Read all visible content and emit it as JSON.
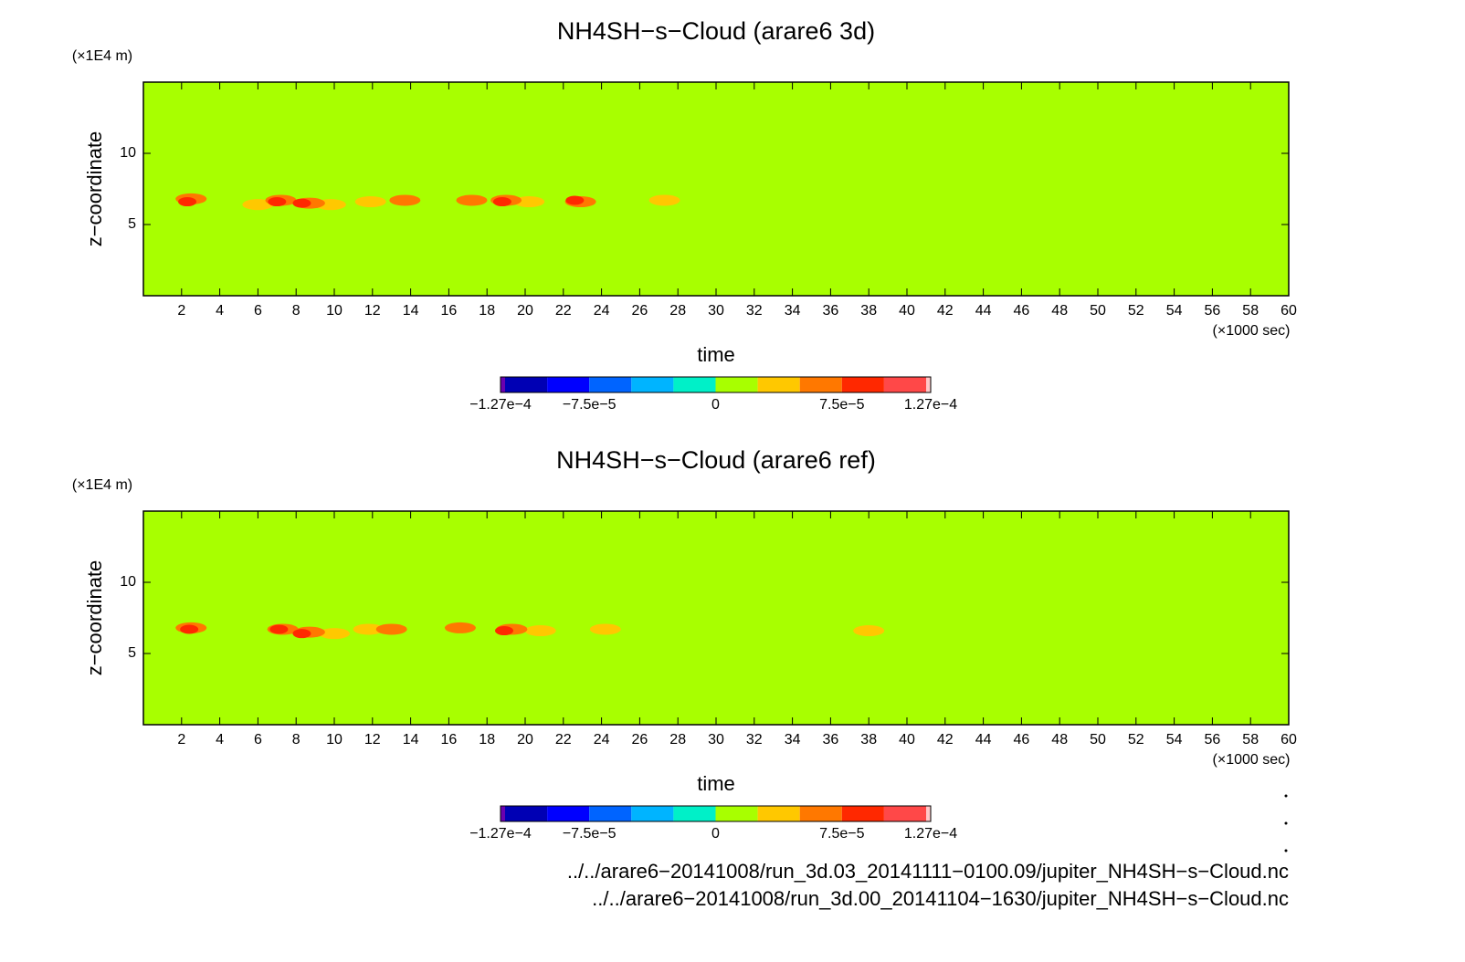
{
  "chart_data": [
    {
      "type": "contour",
      "title": "NH4SH−s−Cloud (arare6 3d)",
      "xlabel": "time",
      "ylabel": "z−coordinate",
      "x_unit": "(×1000 sec)",
      "y_unit": "(×1E4 m)",
      "background_color": "#a8ff00",
      "xlim": [
        0,
        60
      ],
      "ylim": [
        0,
        15
      ],
      "xticks": [
        2,
        4,
        6,
        8,
        10,
        12,
        14,
        16,
        18,
        20,
        22,
        24,
        26,
        28,
        30,
        32,
        34,
        36,
        38,
        40,
        42,
        44,
        46,
        48,
        50,
        52,
        54,
        56,
        58,
        60
      ],
      "yticks": [
        5,
        10
      ],
      "x": [
        9.8,
        6.0,
        11.9,
        20.2,
        27.3,
        2.5,
        7.2,
        8.7,
        13.7,
        17.2,
        19.0,
        22.9,
        2.3,
        7.0,
        8.3,
        18.8,
        22.6
      ],
      "y": [
        6.4,
        6.4,
        6.6,
        6.6,
        6.7,
        6.8,
        6.7,
        6.5,
        6.7,
        6.7,
        6.7,
        6.6,
        6.6,
        6.6,
        6.5,
        6.6,
        6.7
      ],
      "values": [
        3e-05,
        3e-05,
        3e-05,
        3e-05,
        3e-05,
        5e-05,
        5e-05,
        5e-05,
        5e-05,
        5e-05,
        5e-05,
        5e-05,
        9e-05,
        9e-05,
        9e-05,
        9e-05,
        9e-05
      ],
      "colorbar": {
        "boundaries": [
          -0.000127,
          -0.000125,
          -0.0001,
          -7.5e-05,
          -5e-05,
          -2.5e-05,
          0,
          2.5e-05,
          5e-05,
          7.5e-05,
          0.0001,
          0.000125,
          0.000127
        ],
        "colors": [
          "#6a00b0",
          "#0000b4",
          "#0000ff",
          "#0064ff",
          "#00b4ff",
          "#00f0c8",
          "#a8ff00",
          "#ffc800",
          "#ff7800",
          "#ff2800",
          "#ff4848",
          "#ffc8c8"
        ],
        "ticks": [
          {
            "value": -0.000127,
            "label": "−1.27e−4"
          },
          {
            "value": -7.5e-05,
            "label": "−7.5e−5"
          },
          0,
          {
            "value": 7.5e-05,
            "label": "7.5e−5"
          },
          {
            "value": 0.000127,
            "label": "1.27e−4"
          }
        ]
      }
    },
    {
      "type": "contour",
      "title": "NH4SH−s−Cloud (arare6 ref)",
      "xlabel": "time",
      "ylabel": "z−coordinate",
      "x_unit": "(×1000 sec)",
      "y_unit": "(×1E4 m)",
      "background_color": "#a8ff00",
      "xlim": [
        0,
        60
      ],
      "ylim": [
        0,
        15
      ],
      "xticks": [
        2,
        4,
        6,
        8,
        10,
        12,
        14,
        16,
        18,
        20,
        22,
        24,
        26,
        28,
        30,
        32,
        34,
        36,
        38,
        40,
        42,
        44,
        46,
        48,
        50,
        52,
        54,
        56,
        58,
        60
      ],
      "yticks": [
        5,
        10
      ],
      "x": [
        10.0,
        11.8,
        20.8,
        24.2,
        38.0,
        2.5,
        7.3,
        8.7,
        13.0,
        16.6,
        19.3,
        2.4,
        7.1,
        8.3,
        18.9
      ],
      "y": [
        6.4,
        6.7,
        6.6,
        6.7,
        6.6,
        6.8,
        6.7,
        6.5,
        6.7,
        6.8,
        6.7,
        6.7,
        6.7,
        6.4,
        6.6
      ],
      "values": [
        3e-05,
        3e-05,
        3e-05,
        3e-05,
        3e-05,
        5e-05,
        5e-05,
        5e-05,
        5e-05,
        5e-05,
        5e-05,
        9e-05,
        9e-05,
        9e-05,
        9e-05
      ],
      "colorbar": {
        "boundaries": [
          -0.000127,
          -0.000125,
          -0.0001,
          -7.5e-05,
          -5e-05,
          -2.5e-05,
          0,
          2.5e-05,
          5e-05,
          7.5e-05,
          0.0001,
          0.000125,
          0.000127
        ],
        "colors": [
          "#6a00b0",
          "#0000b4",
          "#0000ff",
          "#0064ff",
          "#00b4ff",
          "#00f0c8",
          "#a8ff00",
          "#ffc800",
          "#ff7800",
          "#ff2800",
          "#ff4848",
          "#ffc8c8"
        ],
        "ticks": [
          {
            "value": -0.000127,
            "label": "−1.27e−4"
          },
          {
            "value": -7.5e-05,
            "label": "−7.5e−5"
          },
          0,
          {
            "value": 7.5e-05,
            "label": "7.5e−5"
          },
          {
            "value": 0.000127,
            "label": "1.27e−4"
          }
        ]
      }
    }
  ],
  "footnotes": [
    "../../arare6−20141008/run_3d.03_20141111−0100.09/jupiter_NH4SH−s−Cloud.nc",
    "../../arare6−20141008/run_3d.00_20141104−1630/jupiter_NH4SH−s−Cloud.nc"
  ]
}
